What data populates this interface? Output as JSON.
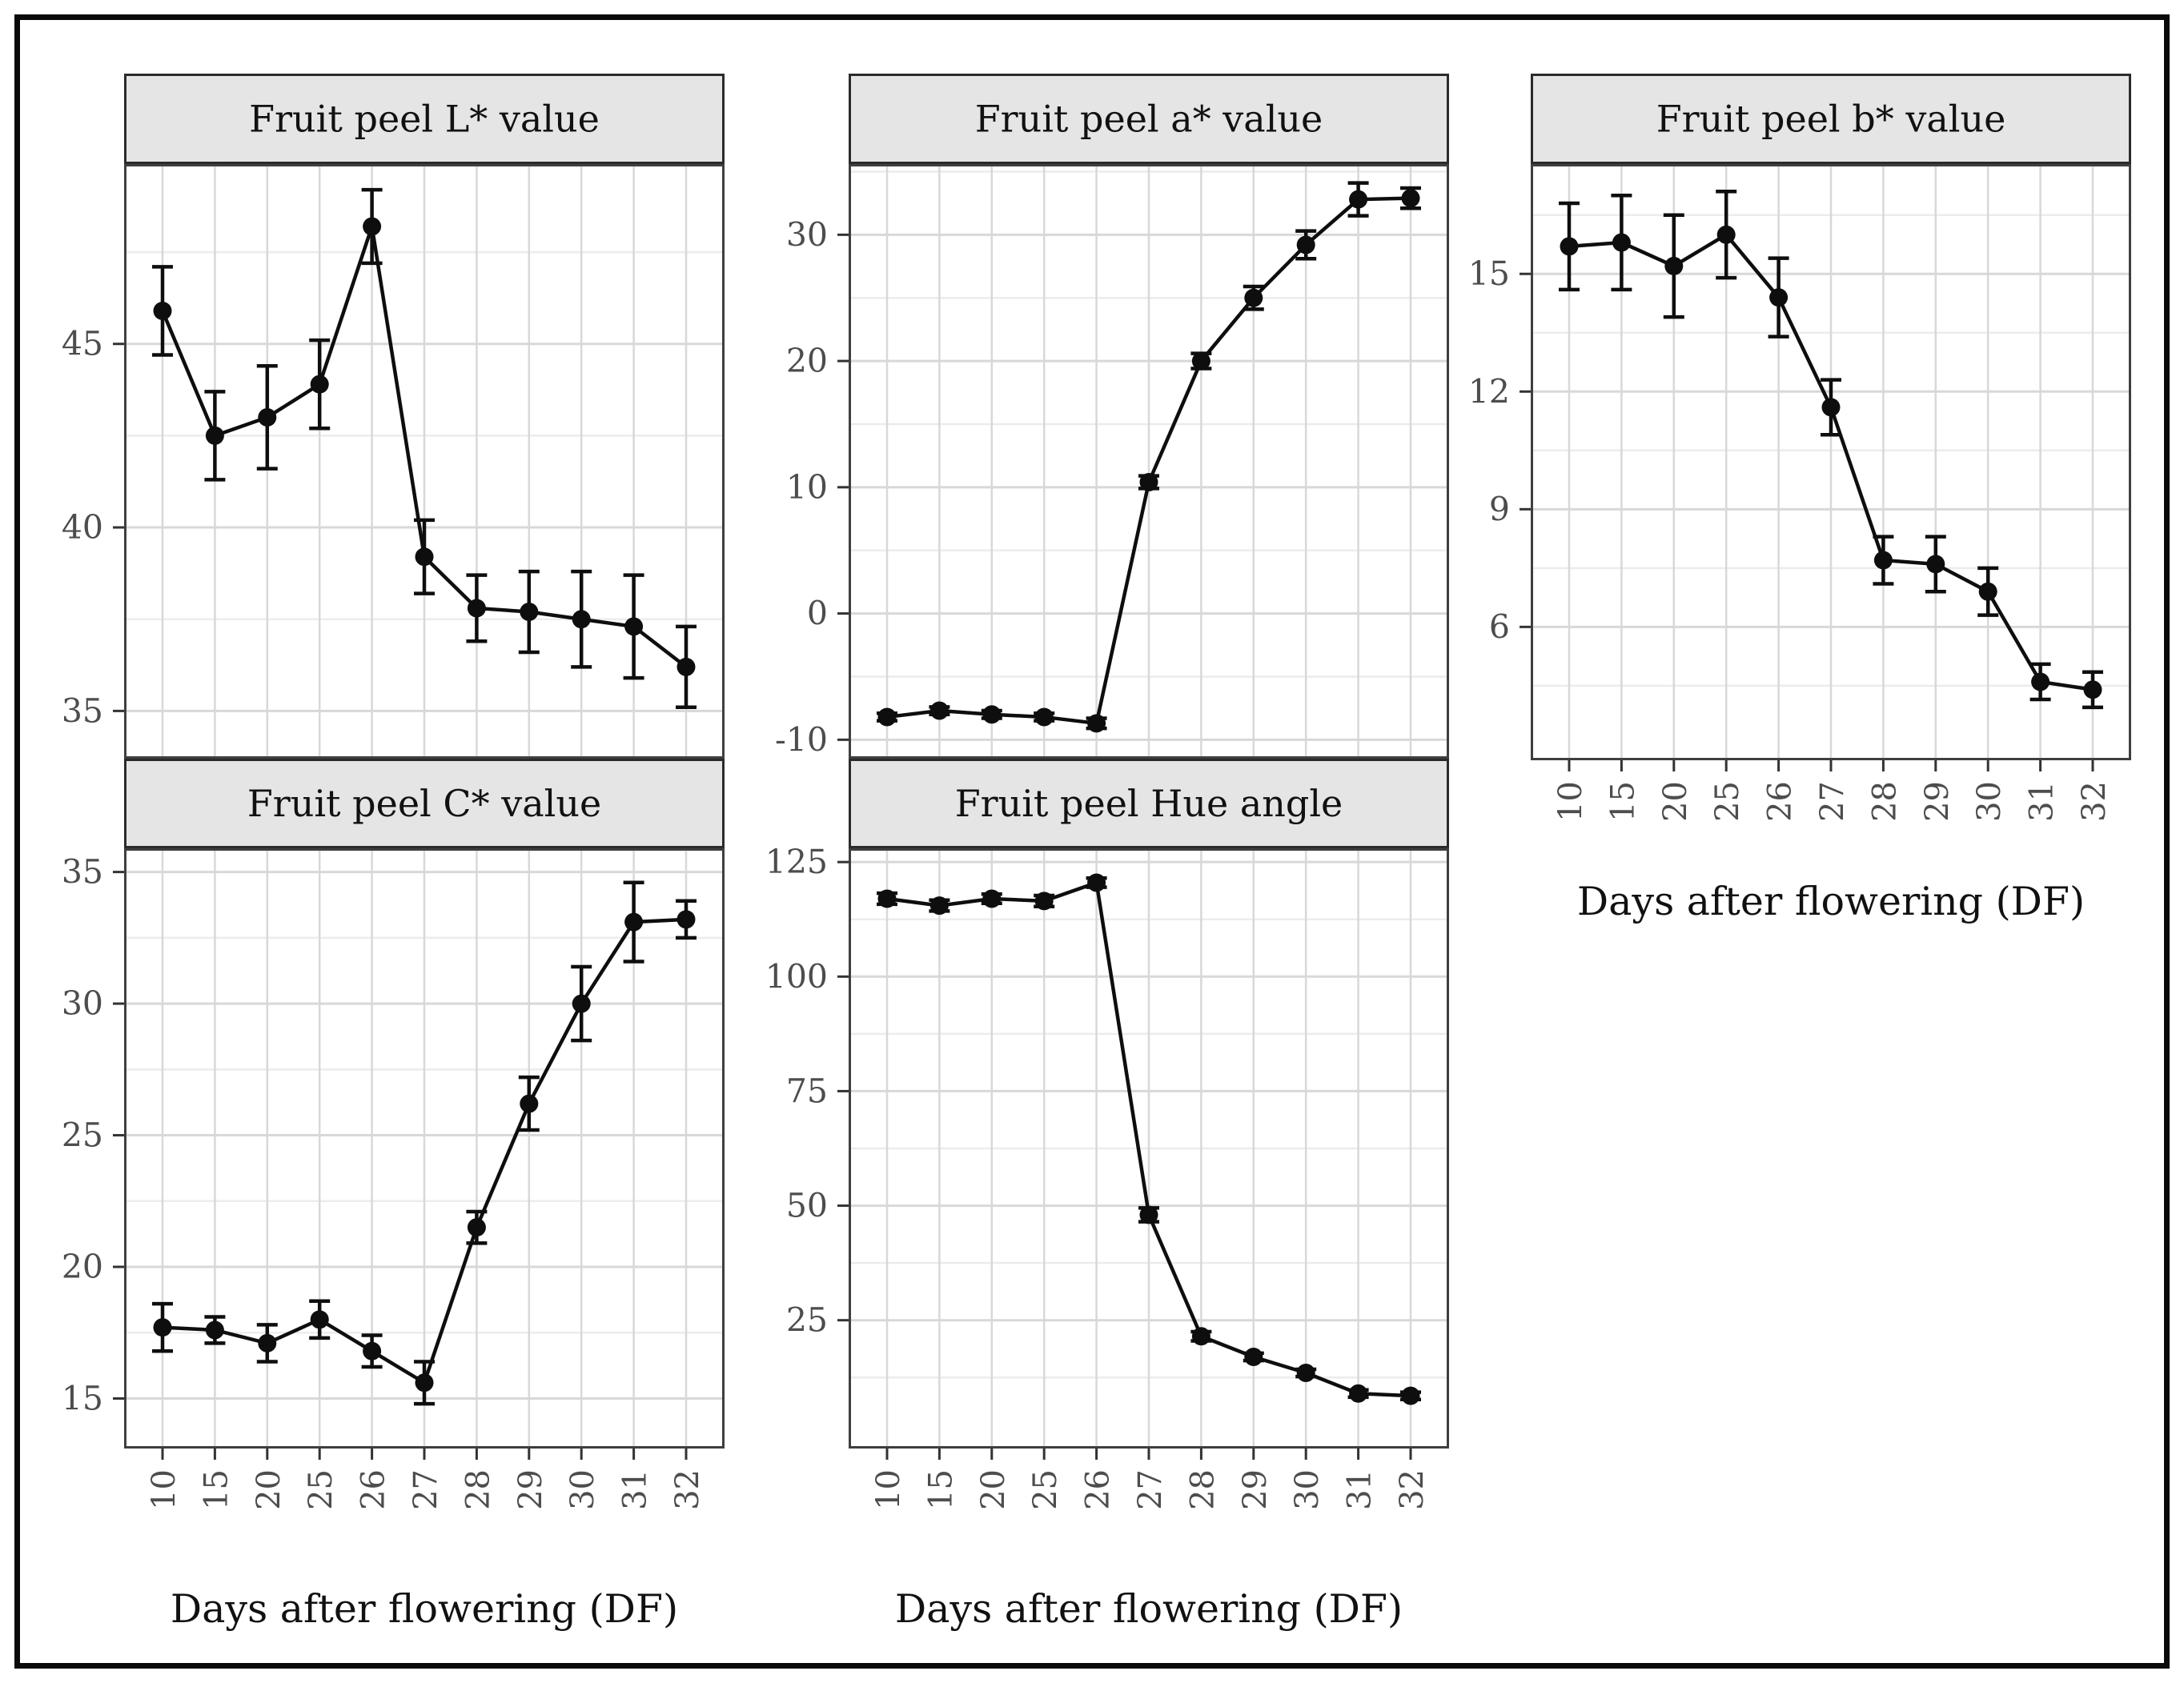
{
  "figure": {
    "x_axis_title": "Days after flowering (DF)",
    "x_categories": [
      "10",
      "15",
      "20",
      "25",
      "26",
      "27",
      "28",
      "29",
      "30",
      "31",
      "32"
    ]
  },
  "chart_data": [
    {
      "type": "line",
      "title": "Fruit peel L* value",
      "xlabel": "Days after flowering (DF)",
      "ylabel": "",
      "categories": [
        "10",
        "15",
        "20",
        "25",
        "26",
        "27",
        "28",
        "29",
        "30",
        "31",
        "32"
      ],
      "values": [
        45.9,
        42.5,
        43.0,
        43.9,
        48.2,
        39.2,
        37.8,
        37.7,
        37.5,
        37.3,
        36.2
      ],
      "errors": [
        1.2,
        1.2,
        1.4,
        1.2,
        1.0,
        1.0,
        0.9,
        1.1,
        1.3,
        1.4,
        1.1
      ],
      "ylim": [
        33.7,
        49.9
      ],
      "yticks": [
        35,
        40,
        45
      ],
      "grid": "on",
      "legend": "none"
    },
    {
      "type": "line",
      "title": "Fruit peel a* value",
      "xlabel": "Days after flowering (DF)",
      "ylabel": "",
      "categories": [
        "10",
        "15",
        "20",
        "25",
        "26",
        "27",
        "28",
        "29",
        "30",
        "31",
        "32"
      ],
      "values": [
        -8.2,
        -7.7,
        -8.0,
        -8.2,
        -8.7,
        10.4,
        20.0,
        25.0,
        29.2,
        32.8,
        32.9
      ],
      "errors": [
        0.3,
        0.3,
        0.3,
        0.3,
        0.4,
        0.5,
        0.6,
        0.9,
        1.1,
        1.3,
        0.8
      ],
      "ylim": [
        -11.5,
        35.6
      ],
      "yticks": [
        -10,
        0,
        10,
        20,
        30
      ],
      "grid": "on",
      "legend": "none"
    },
    {
      "type": "line",
      "title": "Fruit peel b* value",
      "xlabel": "Days after flowering (DF)",
      "ylabel": "",
      "categories": [
        "10",
        "15",
        "20",
        "25",
        "26",
        "27",
        "28",
        "29",
        "30",
        "31",
        "32"
      ],
      "values": [
        15.7,
        15.8,
        15.2,
        16.0,
        14.4,
        11.6,
        7.7,
        7.6,
        6.9,
        4.6,
        4.4
      ],
      "errors": [
        1.1,
        1.2,
        1.3,
        1.1,
        1.0,
        0.7,
        0.6,
        0.7,
        0.6,
        0.45,
        0.45
      ],
      "ylim": [
        2.6,
        17.8
      ],
      "yticks": [
        6,
        9,
        12,
        15
      ],
      "grid": "on",
      "legend": "none"
    },
    {
      "type": "line",
      "title": "Fruit peel C* value",
      "xlabel": "Days after flowering (DF)",
      "ylabel": "",
      "categories": [
        "10",
        "15",
        "20",
        "25",
        "26",
        "27",
        "28",
        "29",
        "30",
        "31",
        "32"
      ],
      "values": [
        17.7,
        17.6,
        17.1,
        18.0,
        16.8,
        15.6,
        21.5,
        26.2,
        30.0,
        33.1,
        33.2
      ],
      "errors": [
        0.9,
        0.5,
        0.7,
        0.7,
        0.6,
        0.8,
        0.6,
        1.0,
        1.4,
        1.5,
        0.7
      ],
      "ylim": [
        13.1,
        35.9
      ],
      "yticks": [
        15,
        20,
        25,
        30,
        35
      ],
      "grid": "on",
      "legend": "none"
    },
    {
      "type": "line",
      "title": "Fruit peel Hue angle",
      "xlabel": "Days after flowering (DF)",
      "ylabel": "",
      "categories": [
        "10",
        "15",
        "20",
        "25",
        "26",
        "27",
        "28",
        "29",
        "30",
        "31",
        "32"
      ],
      "values": [
        117.0,
        115.5,
        117.0,
        116.5,
        120.5,
        48.0,
        21.5,
        17.0,
        13.5,
        9.0,
        8.5
      ],
      "errors": [
        1.2,
        1.2,
        1.0,
        1.2,
        1.0,
        1.5,
        1.0,
        0.8,
        0.8,
        0.8,
        0.8
      ],
      "ylim": [
        -3,
        128
      ],
      "yticks": [
        25,
        50,
        75,
        100,
        125
      ],
      "grid": "on",
      "legend": "none"
    }
  ],
  "style": {
    "strip_fill": "#e5e5e5",
    "strip_border": "#2b2b2b",
    "panel_border": "#3f3f3f",
    "grid_major": "#d8d8d8",
    "grid_minor": "#ececec",
    "tick_color": "#333333",
    "series_color": "#0e0e0e",
    "tick_label_color": "#4d4d4d"
  }
}
